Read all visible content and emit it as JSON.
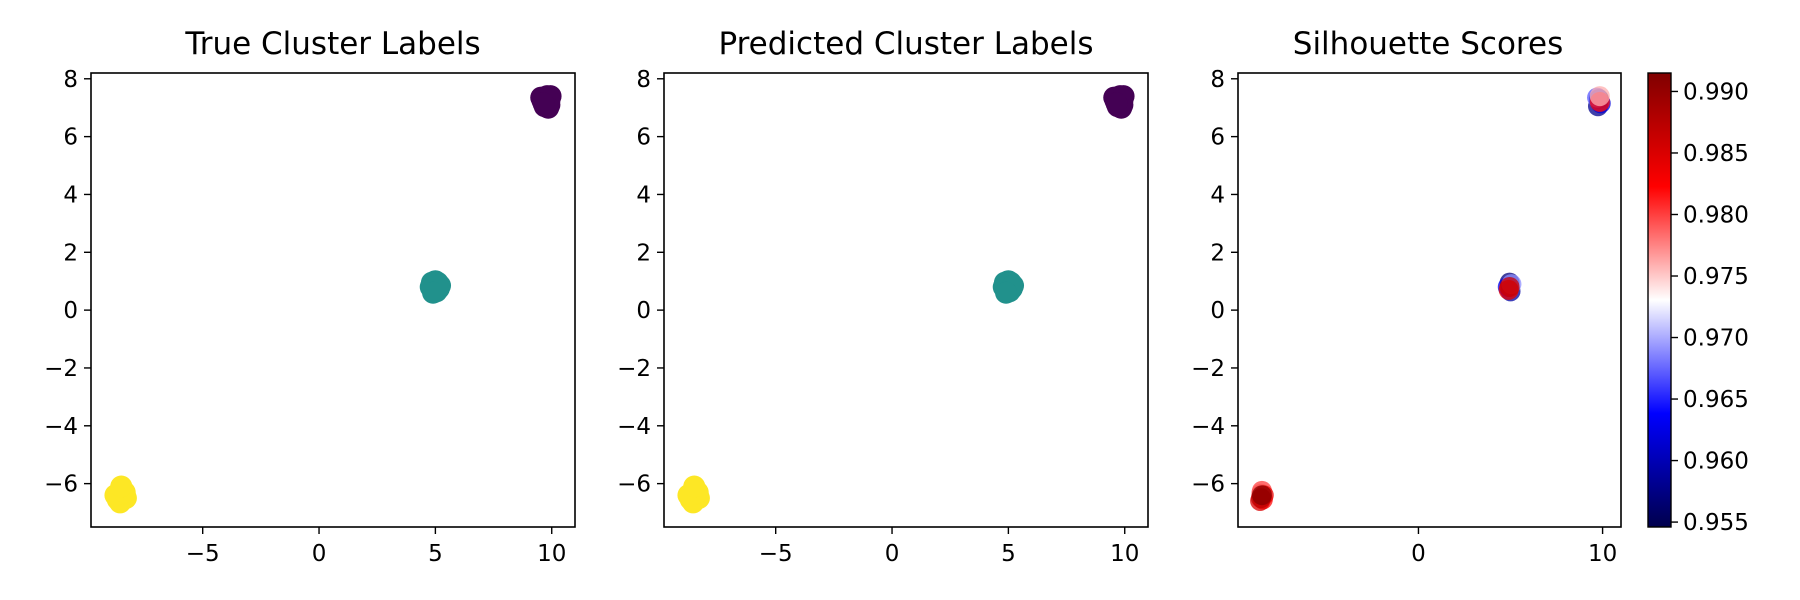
{
  "chart_data": [
    {
      "type": "scatter",
      "title": "True Cluster Labels",
      "xlabel": "",
      "ylabel": "",
      "xlim": [
        -9.8,
        11.0
      ],
      "ylim": [
        -7.5,
        8.2
      ],
      "xticks": [
        -5,
        0,
        5,
        10
      ],
      "yticks": [
        -6,
        -4,
        -2,
        0,
        2,
        4,
        6,
        8
      ],
      "grid": false,
      "colormap": "viridis",
      "series": [
        {
          "color": "#440154",
          "points": [
            [
              9.75,
              7.35
            ],
            [
              9.6,
              7.25
            ],
            [
              9.9,
              7.25
            ],
            [
              9.7,
              7.05
            ],
            [
              9.9,
              7.1
            ],
            [
              9.8,
              7.4
            ],
            [
              9.55,
              7.35
            ],
            [
              9.95,
              7.4
            ],
            [
              9.85,
              7.0
            ],
            [
              9.65,
              7.15
            ]
          ]
        },
        {
          "color": "#21918c",
          "points": [
            [
              4.9,
              0.9
            ],
            [
              5.1,
              0.95
            ],
            [
              4.95,
              0.7
            ],
            [
              5.15,
              0.75
            ],
            [
              4.8,
              0.8
            ],
            [
              5.0,
              1.0
            ],
            [
              5.05,
              0.65
            ],
            [
              4.85,
              0.95
            ],
            [
              5.2,
              0.85
            ],
            [
              4.9,
              0.6
            ]
          ]
        },
        {
          "color": "#fde725",
          "points": [
            [
              -8.6,
              -6.3
            ],
            [
              -8.4,
              -6.4
            ],
            [
              -8.65,
              -6.55
            ],
            [
              -8.45,
              -6.2
            ],
            [
              -8.3,
              -6.5
            ],
            [
              -8.55,
              -6.65
            ],
            [
              -8.5,
              -6.35
            ],
            [
              -8.75,
              -6.4
            ],
            [
              -8.35,
              -6.3
            ],
            [
              -8.5,
              -6.1
            ]
          ]
        }
      ]
    },
    {
      "type": "scatter",
      "title": "Predicted Cluster Labels",
      "xlabel": "",
      "ylabel": "",
      "xlim": [
        -9.8,
        11.0
      ],
      "ylim": [
        -7.5,
        8.2
      ],
      "xticks": [
        -5,
        0,
        5,
        10
      ],
      "yticks": [
        -6,
        -4,
        -2,
        0,
        2,
        4,
        6,
        8
      ],
      "grid": false,
      "colormap": "viridis",
      "series": [
        {
          "color": "#440154",
          "points": [
            [
              9.75,
              7.35
            ],
            [
              9.6,
              7.25
            ],
            [
              9.9,
              7.25
            ],
            [
              9.7,
              7.05
            ],
            [
              9.9,
              7.1
            ],
            [
              9.8,
              7.4
            ],
            [
              9.55,
              7.35
            ],
            [
              9.95,
              7.4
            ],
            [
              9.85,
              7.0
            ],
            [
              9.65,
              7.15
            ]
          ]
        },
        {
          "color": "#21918c",
          "points": [
            [
              4.9,
              0.9
            ],
            [
              5.1,
              0.95
            ],
            [
              4.95,
              0.7
            ],
            [
              5.15,
              0.75
            ],
            [
              4.8,
              0.8
            ],
            [
              5.0,
              1.0
            ],
            [
              5.05,
              0.65
            ],
            [
              4.85,
              0.95
            ],
            [
              5.2,
              0.85
            ],
            [
              4.9,
              0.6
            ]
          ]
        },
        {
          "color": "#fde725",
          "points": [
            [
              -8.6,
              -6.3
            ],
            [
              -8.4,
              -6.4
            ],
            [
              -8.65,
              -6.55
            ],
            [
              -8.45,
              -6.2
            ],
            [
              -8.3,
              -6.5
            ],
            [
              -8.55,
              -6.65
            ],
            [
              -8.5,
              -6.35
            ],
            [
              -8.75,
              -6.4
            ],
            [
              -8.35,
              -6.3
            ],
            [
              -8.5,
              -6.1
            ]
          ]
        }
      ]
    },
    {
      "type": "scatter",
      "title": "Silhouette Scores",
      "xlabel": "",
      "ylabel": "",
      "xlim": [
        -9.8,
        11.0
      ],
      "ylim": [
        -7.5,
        8.2
      ],
      "xticks": [
        0,
        10
      ],
      "yticks": [
        -6,
        -4,
        -2,
        0,
        2,
        4,
        6,
        8
      ],
      "grid": false,
      "colormap": "seismic",
      "colorbar": {
        "range": [
          0.9546,
          0.9915
        ],
        "ticks": [
          "0.955",
          "0.960",
          "0.965",
          "0.970",
          "0.975",
          "0.980",
          "0.985",
          "0.990"
        ]
      },
      "points": [
        {
          "x": 9.8,
          "y": 7.3,
          "score": 0.956
        },
        {
          "x": 9.75,
          "y": 7.05,
          "score": 0.958
        },
        {
          "x": 9.9,
          "y": 7.15,
          "score": 0.962
        },
        {
          "x": 9.7,
          "y": 7.35,
          "score": 0.967
        },
        {
          "x": 9.85,
          "y": 7.2,
          "score": 0.982
        },
        {
          "x": 9.85,
          "y": 7.4,
          "score": 0.976
        },
        {
          "x": 4.95,
          "y": 0.95,
          "score": 0.957
        },
        {
          "x": 5.0,
          "y": 0.65,
          "score": 0.959
        },
        {
          "x": 4.85,
          "y": 0.8,
          "score": 0.963
        },
        {
          "x": 5.05,
          "y": 0.9,
          "score": 0.969
        },
        {
          "x": 4.9,
          "y": 0.7,
          "score": 0.984
        },
        {
          "x": 4.95,
          "y": 0.8,
          "score": 0.986
        },
        {
          "x": -8.55,
          "y": -6.35,
          "score": 0.977
        },
        {
          "x": -8.45,
          "y": -6.55,
          "score": 0.982
        },
        {
          "x": -8.6,
          "y": -6.6,
          "score": 0.985
        },
        {
          "x": -8.5,
          "y": -6.25,
          "score": 0.98
        },
        {
          "x": -8.4,
          "y": -6.4,
          "score": 0.984
        },
        {
          "x": -8.55,
          "y": -6.5,
          "score": 0.987
        },
        {
          "x": -8.5,
          "y": -6.4,
          "score": 0.991
        }
      ]
    }
  ]
}
